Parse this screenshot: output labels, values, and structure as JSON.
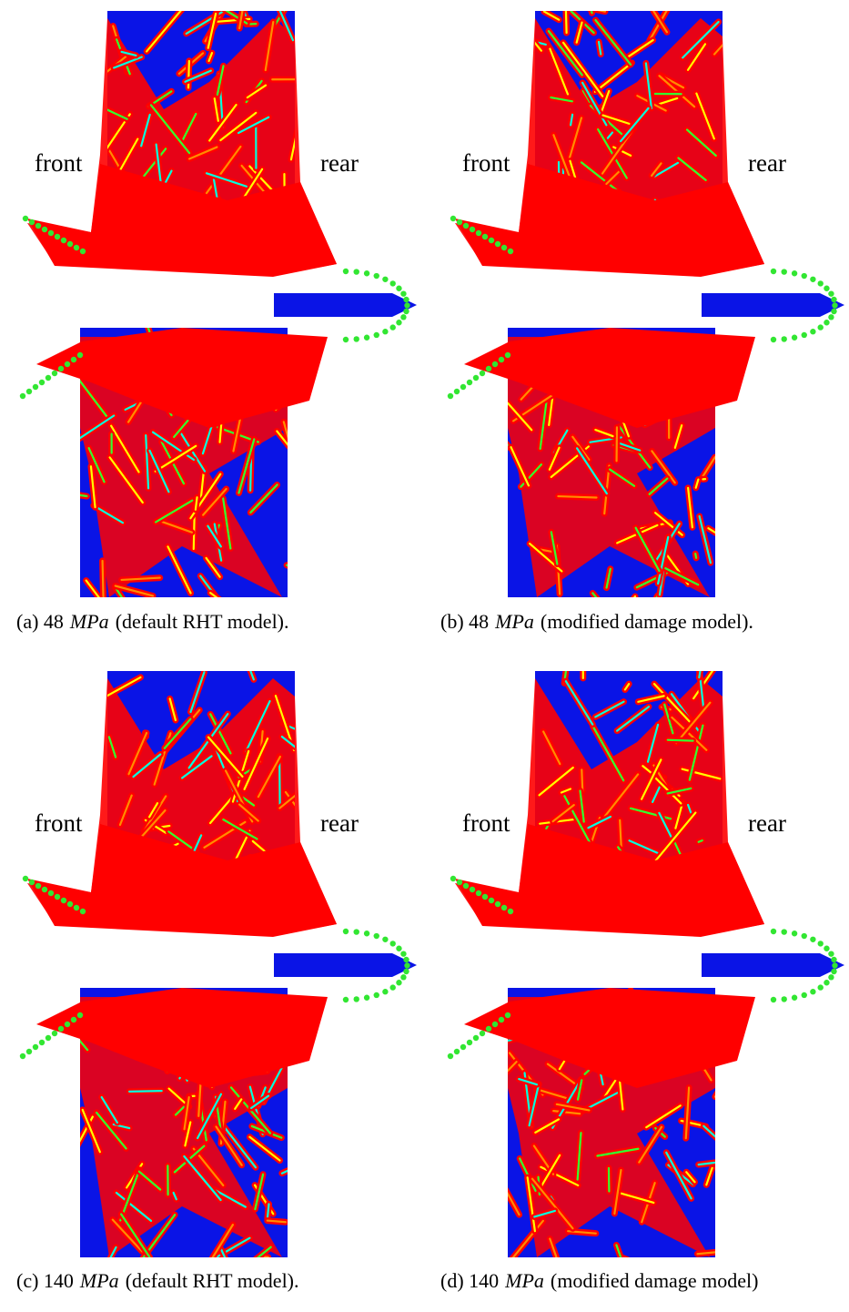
{
  "panels": [
    {
      "front": "front",
      "rear": "rear",
      "caption": {
        "prefix": "(a) 48",
        "unit": "MPa",
        "suffix": "(default RHT model)."
      }
    },
    {
      "front": "front",
      "rear": "rear",
      "caption": {
        "prefix": "(b) 48",
        "unit": "MPa",
        "suffix": "(modified damage model)."
      }
    },
    {
      "front": "front",
      "rear": "rear",
      "caption": {
        "prefix": "(c) 140",
        "unit": "MPa",
        "suffix": "(default RHT model)."
      }
    },
    {
      "front": "front",
      "rear": "rear",
      "caption": {
        "prefix": "(d) 140",
        "unit": "MPa",
        "suffix": "(modified damage model)"
      }
    }
  ]
}
